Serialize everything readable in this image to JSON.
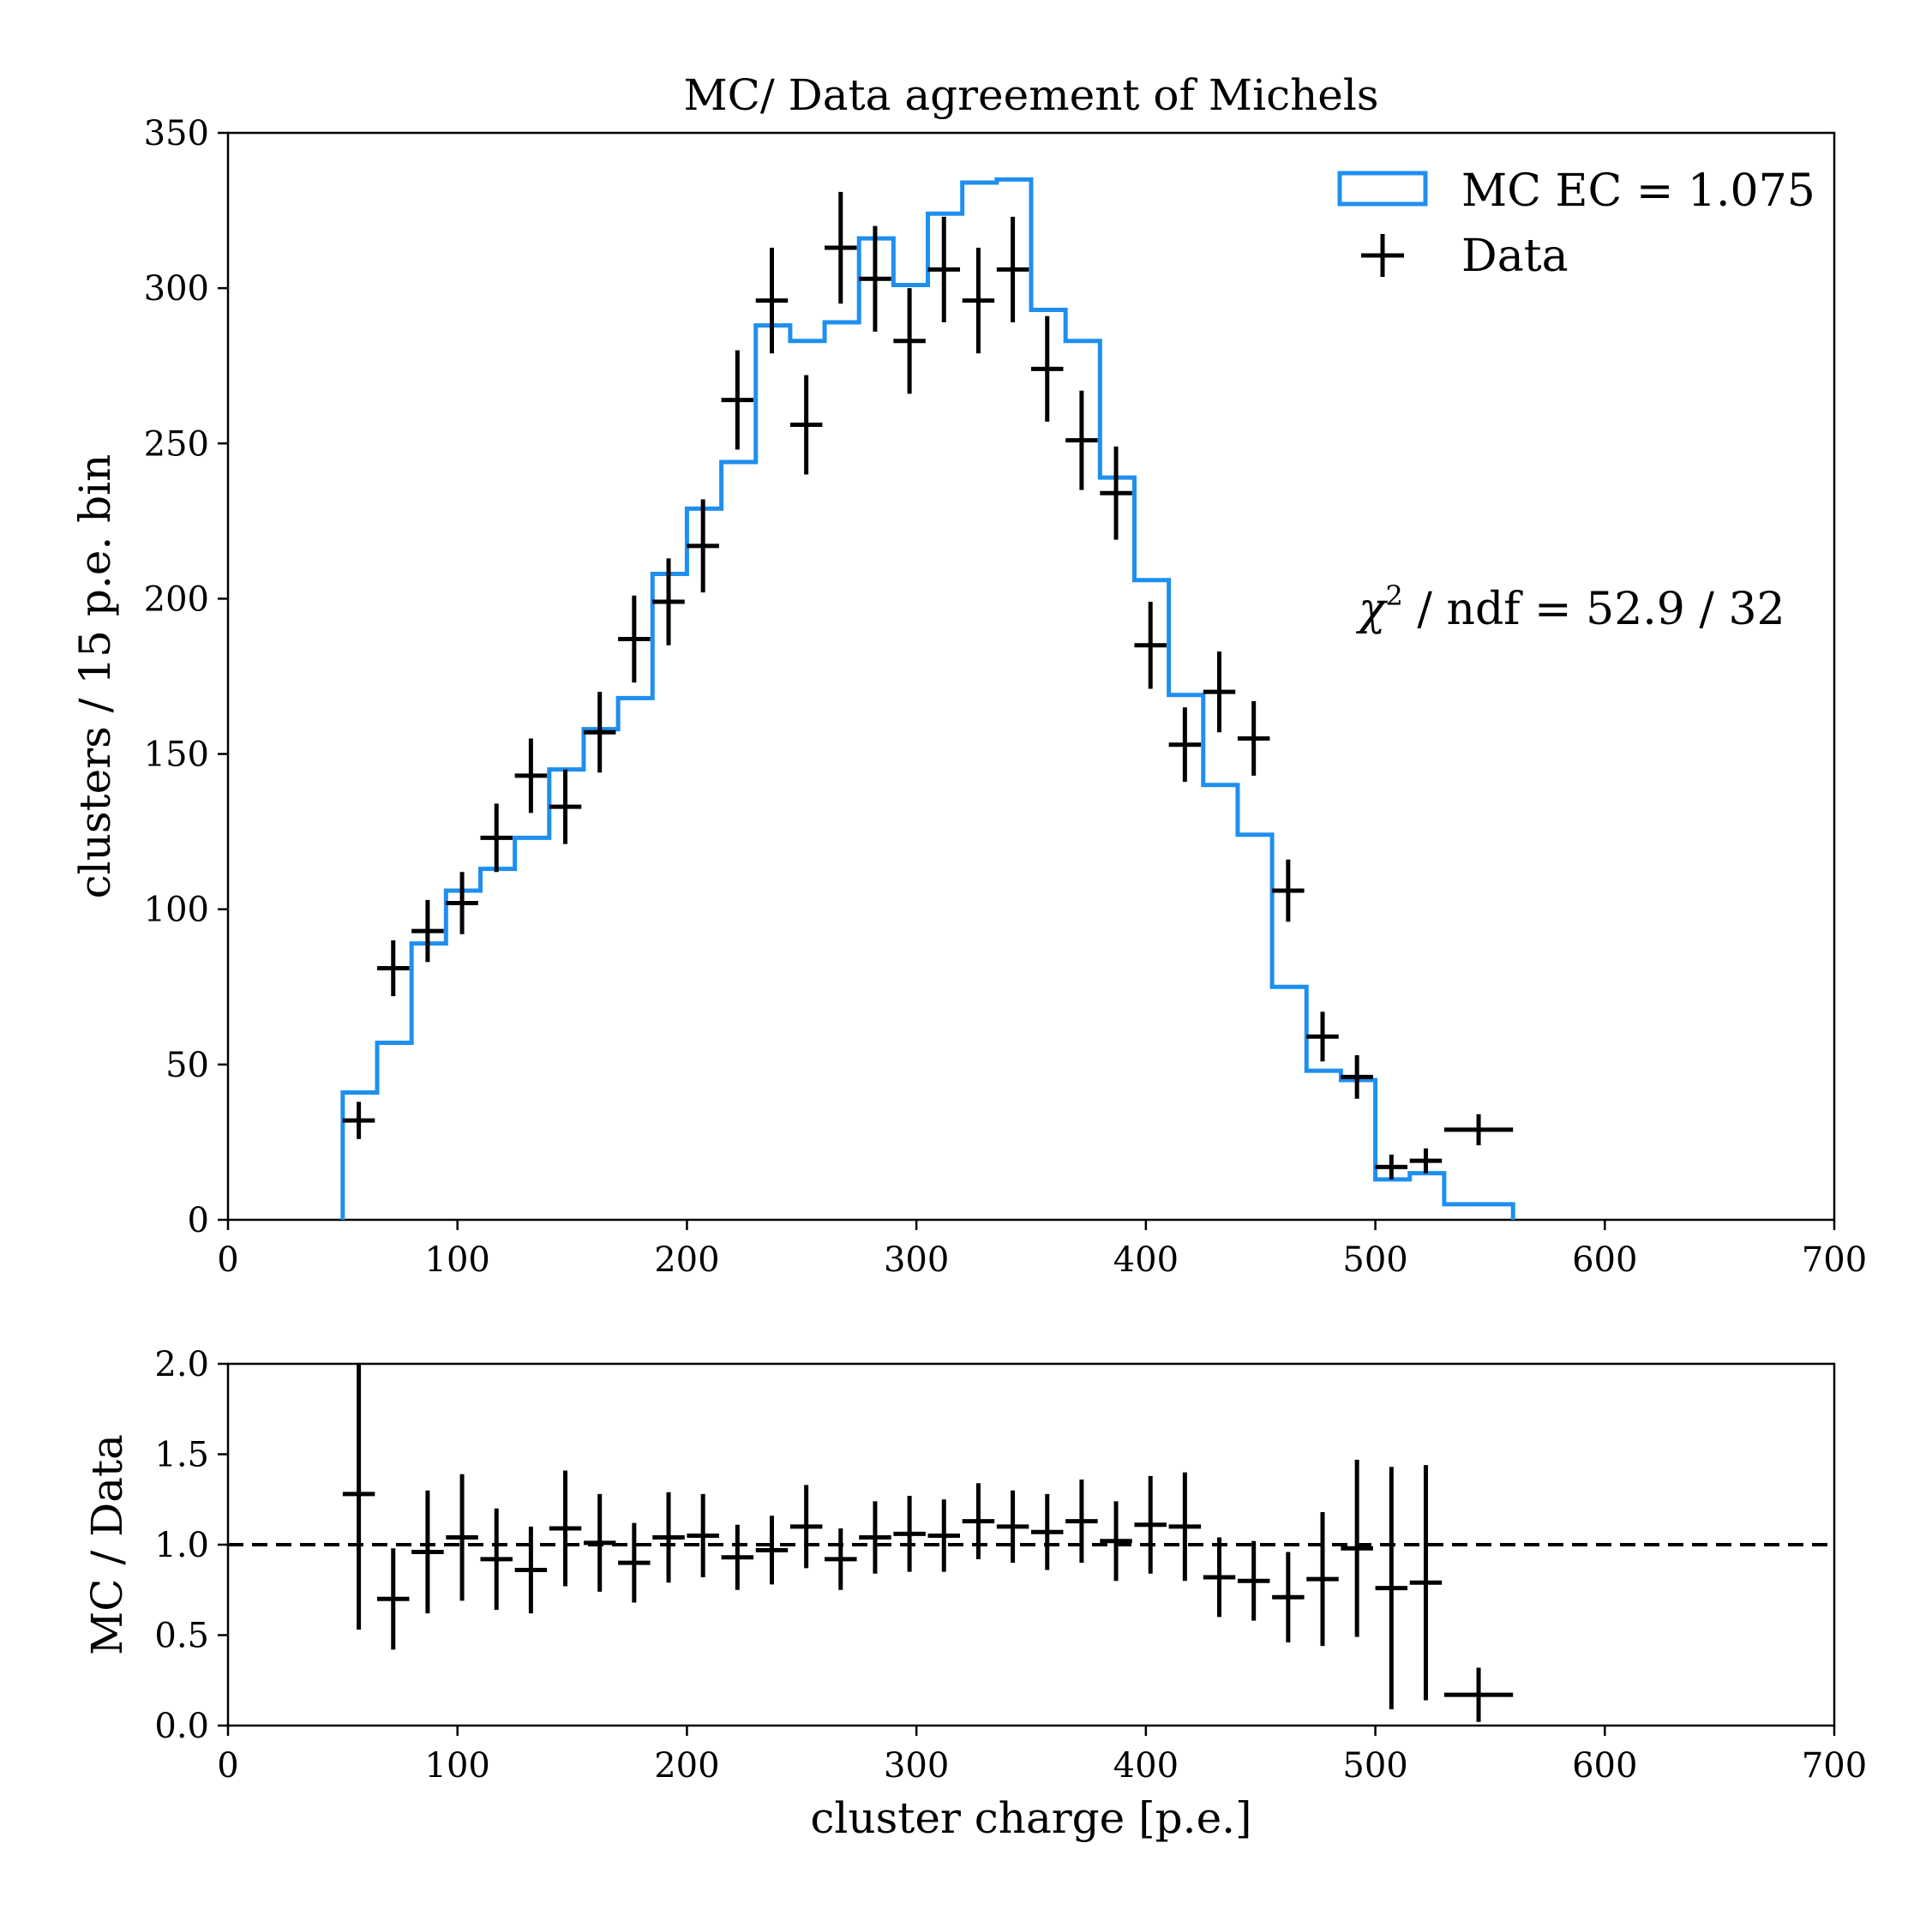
{
  "chart_data": [
    {
      "type": "histogram",
      "panel": "main",
      "title": "MC/ Data agreement of Michels",
      "xlabel": "",
      "ylabel": "clusters / 15 p.e. bin",
      "xlim": [
        0,
        700
      ],
      "ylim": [
        0,
        350
      ],
      "xticks": [
        0,
        100,
        200,
        300,
        400,
        500,
        600,
        700
      ],
      "yticks": [
        0,
        50,
        100,
        150,
        200,
        250,
        300,
        350
      ],
      "grid": false,
      "legend_position": "top-right",
      "annotation": {
        "symbol": "χ",
        "superscript": "2",
        "text": " / ndf = 52.9 / 32"
      },
      "series": [
        {
          "name": "MC EC = 1.075",
          "kind": "step",
          "color": "#1f8fef",
          "bin_edges": [
            50,
            65,
            80,
            95,
            110,
            125,
            140,
            155,
            170,
            185,
            200,
            215,
            230,
            245,
            260,
            275,
            290,
            305,
            320,
            335,
            350,
            365,
            380,
            395,
            410,
            425,
            440,
            455,
            470,
            485,
            500,
            515,
            530,
            545,
            560
          ],
          "values": [
            41,
            57,
            89,
            106,
            113,
            123,
            145,
            158,
            168,
            208,
            229,
            244,
            288,
            283,
            289,
            316,
            301,
            324,
            334,
            335,
            293,
            283,
            239,
            206,
            169,
            140,
            124,
            75,
            48,
            45,
            13,
            15,
            5,
            5
          ]
        },
        {
          "name": "Data",
          "kind": "errorbar",
          "color": "#000000",
          "x": [
            57,
            72,
            87,
            102,
            117,
            132,
            147,
            162,
            177,
            192,
            207,
            222,
            237,
            252,
            267,
            282,
            297,
            312,
            327,
            342,
            357,
            372,
            387,
            402,
            417,
            432,
            447,
            462,
            477,
            492,
            507,
            522,
            545
          ],
          "xerr": [
            7,
            7,
            7,
            7,
            7,
            7,
            7,
            7,
            7,
            7,
            7,
            7,
            7,
            7,
            7,
            7,
            7,
            7,
            7,
            7,
            7,
            7,
            7,
            7,
            7,
            7,
            7,
            7,
            7,
            7,
            7,
            7,
            15
          ],
          "y": [
            32,
            81,
            93,
            102,
            123,
            143,
            133,
            157,
            187,
            199,
            217,
            264,
            296,
            256,
            313,
            303,
            283,
            306,
            296,
            306,
            274,
            251,
            234,
            185,
            153,
            170,
            155,
            106,
            59,
            46,
            17,
            19,
            29
          ],
          "yerr": [
            6,
            9,
            10,
            10,
            11,
            12,
            12,
            13,
            14,
            14,
            15,
            16,
            17,
            16,
            18,
            17,
            17,
            17,
            17,
            17,
            17,
            16,
            15,
            14,
            12,
            13,
            12,
            10,
            8,
            7,
            4,
            4,
            5
          ]
        }
      ]
    },
    {
      "type": "scatter",
      "panel": "ratio",
      "title": "",
      "xlabel": "cluster charge [p.e.]",
      "ylabel": "MC / Data",
      "xlim": [
        0,
        700
      ],
      "ylim": [
        0,
        2
      ],
      "xticks": [
        0,
        100,
        200,
        300,
        400,
        500,
        600,
        700
      ],
      "yticks": [
        "0.0",
        "0.5",
        "1.0",
        "1.5",
        "2.0"
      ],
      "grid": false,
      "reference_line": {
        "y": 1.0,
        "style": "dashed"
      },
      "series": [
        {
          "kind": "errorbar",
          "color": "#000000",
          "x": [
            57,
            72,
            87,
            102,
            117,
            132,
            147,
            162,
            177,
            192,
            207,
            222,
            237,
            252,
            267,
            282,
            297,
            312,
            327,
            342,
            357,
            372,
            387,
            402,
            417,
            432,
            447,
            462,
            477,
            492,
            507,
            522,
            545
          ],
          "xerr": [
            7,
            7,
            7,
            7,
            7,
            7,
            7,
            7,
            7,
            7,
            7,
            7,
            7,
            7,
            7,
            7,
            7,
            7,
            7,
            7,
            7,
            7,
            7,
            7,
            7,
            7,
            7,
            7,
            7,
            7,
            7,
            7,
            15
          ],
          "y": [
            1.28,
            0.7,
            0.96,
            1.04,
            0.92,
            0.86,
            1.09,
            1.01,
            0.9,
            1.04,
            1.05,
            0.93,
            0.97,
            1.1,
            0.92,
            1.04,
            1.06,
            1.05,
            1.13,
            1.1,
            1.07,
            1.13,
            1.02,
            1.11,
            1.1,
            0.82,
            0.8,
            0.71,
            0.81,
            0.98,
            0.76,
            0.79,
            0.17
          ],
          "yerr": [
            0.75,
            0.28,
            0.34,
            0.35,
            0.28,
            0.24,
            0.32,
            0.27,
            0.22,
            0.25,
            0.23,
            0.18,
            0.19,
            0.23,
            0.17,
            0.2,
            0.21,
            0.2,
            0.21,
            0.2,
            0.21,
            0.23,
            0.22,
            0.27,
            0.3,
            0.22,
            0.22,
            0.25,
            0.37,
            0.49,
            0.67,
            0.65,
            0.15
          ]
        }
      ]
    }
  ]
}
